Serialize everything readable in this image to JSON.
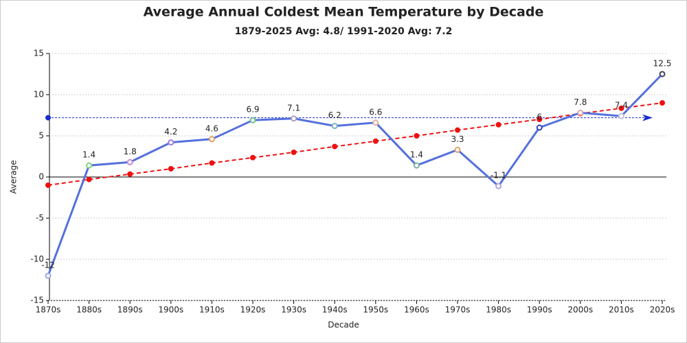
{
  "chart_data": {
    "type": "line",
    "title": "Average Annual Coldest Mean Temperature by Decade",
    "subtitle": "1879-2025 Avg: 4.8/ 1991-2020 Avg: 7.2",
    "x_label": "Decade",
    "y_label": "Average",
    "categories": [
      "1870s",
      "1880s",
      "1890s",
      "1900s",
      "1910s",
      "1920s",
      "1930s",
      "1940s",
      "1950s",
      "1960s",
      "1970s",
      "1980s",
      "1990s",
      "2000s",
      "2010s",
      "2020s"
    ],
    "series": [
      {
        "color": "#5470dc",
        "values": [
          -12,
          1.4,
          1.8,
          4.2,
          4.6,
          6.9,
          7.1,
          6.2,
          6.6,
          1.4,
          3.3,
          -1.1,
          6,
          7.8,
          7.4,
          12.5
        ],
        "marker_colors": [
          "#9aa7d9",
          "#7ed37e",
          "#c58ad8",
          "#9a7be0",
          "#e0a060",
          "#6cc08a",
          "#b0a0c0",
          "#7ab0c8",
          "#e0b0a0",
          "#7ab0a0",
          "#e0a070",
          "#b0a0e0",
          "#3040c0",
          "#e0a0a0",
          "#c0c0e0",
          "#404060"
        ]
      }
    ],
    "trend": {
      "color": "#ee1111",
      "values": [
        -1.0,
        -0.3,
        0.35,
        1.0,
        1.7,
        2.35,
        3.0,
        3.7,
        4.35,
        5.0,
        5.7,
        6.35,
        7.0,
        7.7,
        8.35,
        9.0
      ]
    },
    "reference_line": {
      "value": 7.2,
      "color": "#1a2bd0"
    },
    "ylim": [
      -15,
      15
    ],
    "yticks": [
      -15,
      -10,
      -5,
      0,
      5,
      10,
      15
    ],
    "grid": true
  }
}
